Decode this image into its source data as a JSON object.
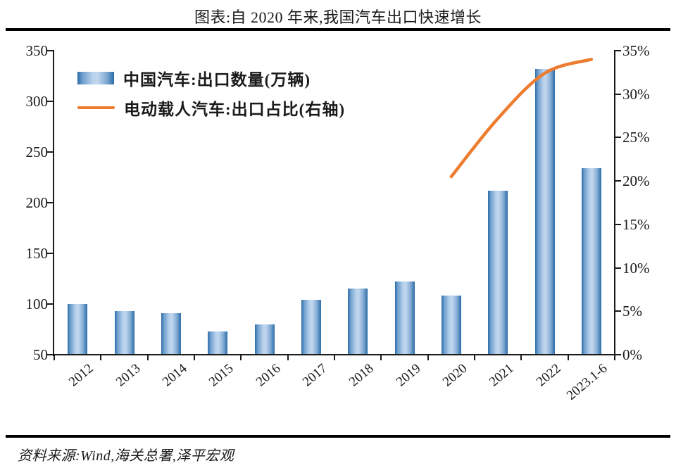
{
  "header": {
    "title": "图表:自 2020 年来,我国汽车出口快速增长"
  },
  "footer": {
    "source": "资料来源:Wind,海关总署,泽平宏观"
  },
  "chart_data": {
    "type": "bar",
    "title": "图表:自 2020 年来,我国汽车出口快速增长",
    "categories": [
      "2012",
      "2013",
      "2014",
      "2015",
      "2016",
      "2017",
      "2018",
      "2019",
      "2020",
      "2021",
      "2022",
      "2023.1-6"
    ],
    "series": [
      {
        "name": "中国汽车:出口数量(万辆)",
        "type": "bar",
        "axis": "left",
        "values": [
          100,
          93,
          91,
          73,
          80,
          104,
          115,
          122,
          108,
          212,
          332,
          234
        ]
      },
      {
        "name": "电动载人汽车:出口占比(右轴)",
        "type": "line",
        "axis": "right",
        "values": [
          null,
          null,
          null,
          null,
          null,
          null,
          null,
          null,
          20.5,
          27.2,
          32.4,
          34
        ]
      }
    ],
    "left_axis": {
      "min": 50,
      "max": 350,
      "step": 50,
      "tick_labels": [
        "350",
        "300",
        "250",
        "200",
        "150",
        "100",
        "50"
      ]
    },
    "right_axis": {
      "min": 0,
      "max": 35,
      "step": 5,
      "unit": "%",
      "tick_labels": [
        "35%",
        "30%",
        "25%",
        "20%",
        "15%",
        "10%",
        "5%",
        "0%"
      ]
    },
    "legend_position": "top-left",
    "grid": false,
    "source": "资料来源:Wind,海关总署,泽平宏观"
  },
  "colors": {
    "bar_edge": "#2b6ca9",
    "bar_mid": "#c0d6ee",
    "line": "#ed7c2f",
    "rule": "#000000",
    "text": "#1a1a1a"
  }
}
